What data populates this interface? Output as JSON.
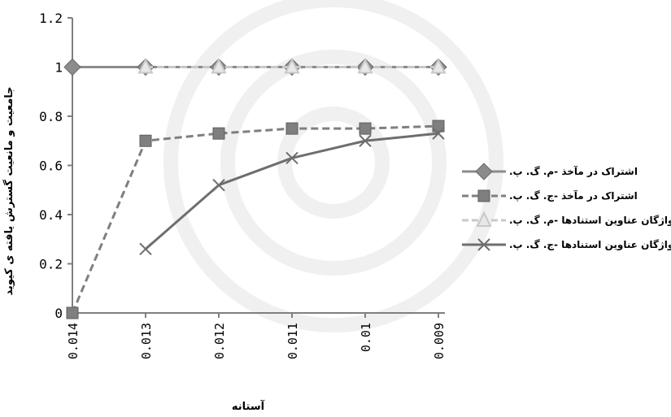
{
  "chart_data": {
    "type": "line",
    "title": "",
    "xlabel": "آستانه",
    "ylabel": "جامعیت و مانعیت گسترش یافته ی کیوید",
    "categories": [
      "0.014",
      "0.013",
      "0.012",
      "0.011",
      "0.01",
      "0.009"
    ],
    "yticks": [
      "0",
      "0.2",
      "0.4",
      "0.6",
      "0.8",
      "1",
      "1.2"
    ],
    "ylim": [
      0,
      1.2
    ],
    "grid": false,
    "legend_position": "right",
    "series": [
      {
        "name": "اشتراک در مآخذ -م. گ. پ.",
        "values": [
          1,
          1,
          1,
          1,
          1,
          1
        ],
        "color": "#8c8c8c",
        "dash": "solid",
        "marker": "diamond"
      },
      {
        "name": "اشتراک در مآخذ -ج. گ. پ.",
        "values": [
          0,
          0.7,
          0.73,
          0.75,
          0.75,
          0.76
        ],
        "color": "#7f7f7f",
        "dash": "dashed",
        "marker": "square"
      },
      {
        "name": "واژگان عناوین استنادها -م. گ. پ.",
        "values": [
          null,
          1,
          1,
          1,
          1,
          1
        ],
        "color": "#c8c8c8",
        "dash": "dashed",
        "marker": "triangle"
      },
      {
        "name": "واژگان عناوین استنادها -ج. گ. پ.",
        "values": [
          null,
          0.26,
          0.52,
          0.63,
          0.7,
          0.73
        ],
        "color": "#6e6e6e",
        "dash": "solid",
        "marker": "x"
      }
    ]
  }
}
